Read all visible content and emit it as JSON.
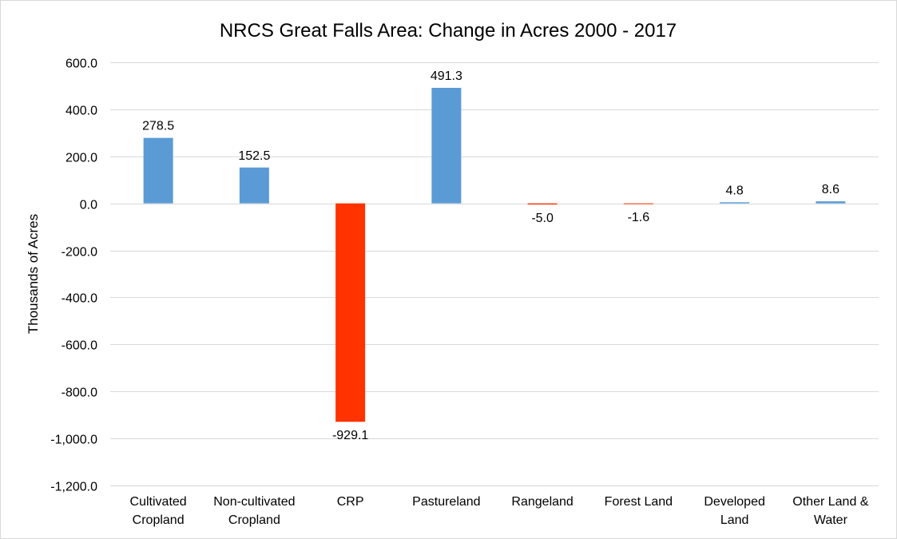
{
  "chart_data": {
    "type": "bar",
    "title": "NRCS Great Falls Area: Change in Acres 2000 - 2017",
    "xlabel": "",
    "ylabel": "Thousands of Acres",
    "ylim": [
      -1200,
      600
    ],
    "ytick_values": [
      600,
      400,
      200,
      0,
      -200,
      -400,
      -600,
      -800,
      -1000,
      -1200
    ],
    "ytick_labels": [
      "600.0",
      "400.0",
      "200.0",
      "0.0",
      "-200.0",
      "-400.0",
      "-600.0",
      "-800.0",
      "-1,000.0",
      "-1,200.0"
    ],
    "grid": true,
    "legend": "none",
    "categories": [
      [
        "Cultivated",
        "Cropland"
      ],
      [
        "Non-cultivated",
        "Cropland"
      ],
      [
        "CRP"
      ],
      [
        "Pastureland"
      ],
      [
        "Rangeland"
      ],
      [
        "Forest Land"
      ],
      [
        "Developed",
        "Land"
      ],
      [
        "Other Land &",
        "Water"
      ]
    ],
    "values": [
      278.5,
      152.5,
      -929.1,
      491.3,
      -5.0,
      -1.6,
      4.8,
      8.6
    ],
    "data_labels": [
      "278.5",
      "152.5",
      "-929.1",
      "491.3",
      "-5.0",
      "-1.6",
      "4.8",
      "8.6"
    ],
    "colors": {
      "positive": "#5b9bd5",
      "negative": "#ff3300",
      "grid": "#d9d9d9",
      "border": "#d9d9d9"
    }
  }
}
